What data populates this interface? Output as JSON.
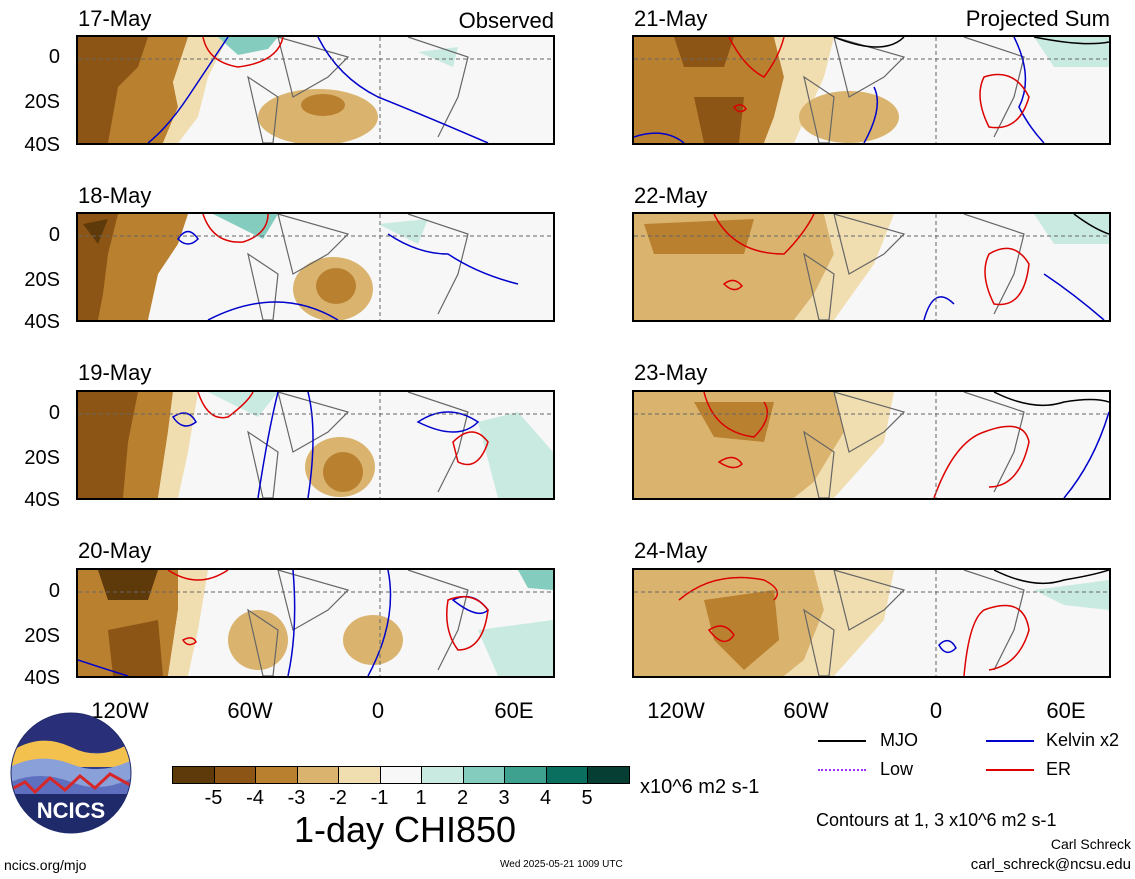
{
  "headers": {
    "observed": "Observed",
    "projected": "Projected Sum"
  },
  "left_panels": [
    {
      "date": "17-May"
    },
    {
      "date": "18-May"
    },
    {
      "date": "19-May"
    },
    {
      "date": "20-May"
    }
  ],
  "right_panels": [
    {
      "date": "21-May"
    },
    {
      "date": "22-May"
    },
    {
      "date": "23-May"
    },
    {
      "date": "24-May"
    }
  ],
  "y_ticks": [
    "0",
    "20S",
    "40S"
  ],
  "x_ticks": [
    "120W",
    "60W",
    "0",
    "60E"
  ],
  "colorbar": {
    "labels": [
      "-5",
      "-4",
      "-3",
      "-2",
      "-1",
      "1",
      "2",
      "3",
      "4",
      "5"
    ],
    "colors": [
      "#5e3a0a",
      "#8c5515",
      "#b9802f",
      "#dab46e",
      "#f1deb0",
      "#f7f7f7",
      "#c9eae1",
      "#84ccbe",
      "#3ea08f",
      "#0b6f5f",
      "#063e34"
    ],
    "units": "x10^6 m2 s-1",
    "title": "1-day CHI850"
  },
  "legend": [
    {
      "label": "MJO",
      "color": "#000000"
    },
    {
      "label": "Kelvin x2",
      "color": "#0000cc"
    },
    {
      "label": "Low",
      "color": "#9b30ff"
    },
    {
      "label": "ER",
      "color": "#dd0000"
    }
  ],
  "contours_note": "Contours at 1, 3 x10^6 m2 s-1",
  "logo_text": "NCICS",
  "website": "ncics.org/mjo",
  "timestamp": "Wed 2025-05-21 1009 UTC",
  "author": "Carl Schreck",
  "email": "carl_schreck@ncsu.edu"
}
